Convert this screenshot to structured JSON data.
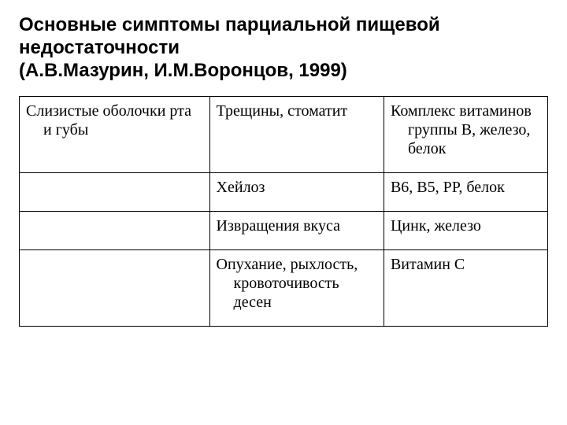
{
  "title_lines": [
    "Основные симптомы парциальной пищевой недостаточности",
    "(А.В.Мазурин, И.М.Воронцов, 1999)"
  ],
  "table": {
    "columns": [
      "area",
      "symptom",
      "deficiency"
    ],
    "col_widths_pct": [
      36,
      33,
      31
    ],
    "border_color": "#000000",
    "cell_fontsize_pt": 20,
    "rows": [
      {
        "area": "Слизистые оболочки рта и губы",
        "symptom": "Трещины, стоматит",
        "deficiency": "Комплекс витаминов группы В, железо, белок"
      },
      {
        "area": "",
        "symptom": "Хейлоз",
        "deficiency": "В6, В5, РР, белок"
      },
      {
        "area": "",
        "symptom": "Извращения вкуса",
        "deficiency": "Цинк, железо"
      },
      {
        "area": "",
        "symptom": "Опухание, рыхлость, кровоточивость десен",
        "deficiency": "Витамин С"
      }
    ]
  },
  "style": {
    "background_color": "#ffffff",
    "text_color": "#000000",
    "title_font": "Arial",
    "title_fontsize_pt": 24,
    "title_weight": "bold",
    "body_font": "Times New Roman"
  }
}
